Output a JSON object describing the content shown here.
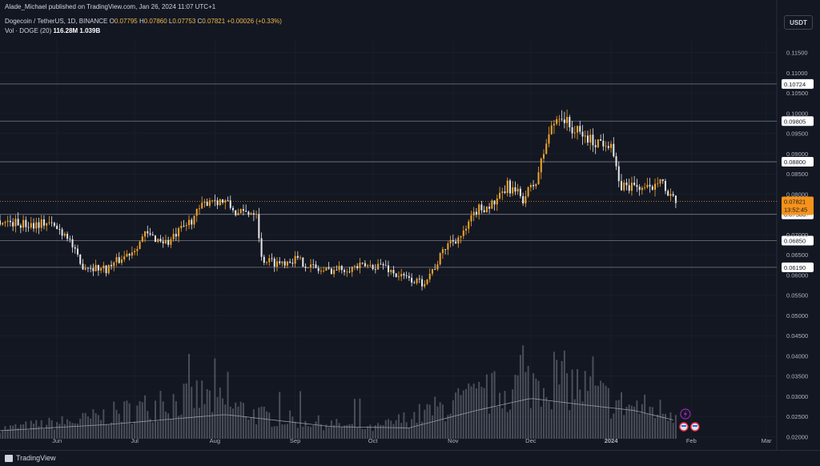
{
  "header": {
    "publisher": "Alade_Michael published on TradingView.com, Jan 26, 2024 11:07 UTC+1",
    "symbol": "Dogecoin / TetherUS, 1D, BINANCE",
    "ohlc": [
      {
        "k": "O",
        "v": "0.07795"
      },
      {
        "k": "H",
        "v": "0.07860"
      },
      {
        "k": "L",
        "v": "0.07753"
      },
      {
        "k": "C",
        "v": "0.07821"
      }
    ],
    "change": "+0.00026 (+0.33%)",
    "vol_label": "Vol · DOGE (20)",
    "vol_value": "116.28M",
    "vol_ma": "1.039B"
  },
  "currency": "USDT",
  "footer": {
    "brand": "TradingView"
  },
  "colors": {
    "background": "#131722",
    "up": "#f0a52c",
    "down": "#e8e8ea",
    "level_line": "#787b86",
    "price_line": "#f7931a",
    "volume": "#787b86",
    "volume_ma": "#9598a1"
  },
  "chart_data": {
    "type": "candlestick",
    "price_axis": {
      "ticks": [
        "0.11500",
        "0.11000",
        "0.10500",
        "0.10000",
        "0.09500",
        "0.09000",
        "0.08500",
        "0.08000",
        "0.07500",
        "0.07000",
        "0.06500",
        "0.06000",
        "0.05500",
        "0.05000",
        "0.04500",
        "0.04000",
        "0.03500",
        "0.03000",
        "0.02500",
        "0.02000"
      ],
      "range": [
        0.0195,
        0.1185
      ]
    },
    "time_axis": {
      "labels": [
        "Jun",
        "Jul",
        "Aug",
        "Sep",
        "Oct",
        "Nov",
        "Dec",
        "2024",
        "Feb",
        "Mar"
      ],
      "start": "2023-05-10",
      "end": "2024-03-05"
    },
    "horizontal_levels": [
      {
        "value": 0.10724,
        "label": "0.10724"
      },
      {
        "value": 0.09805,
        "label": "0.09805"
      },
      {
        "value": 0.088,
        "label": "0.08800"
      },
      {
        "value": 0.075,
        "label": "0.07500"
      },
      {
        "value": 0.0685,
        "label": "0.06850"
      },
      {
        "value": 0.0619,
        "label": "0.06190"
      }
    ],
    "last_price": {
      "value": 0.07821,
      "label": "0.07821",
      "countdown": "13:52:45"
    },
    "price_anchors": [
      [
        "2023-05-10",
        0.0735
      ],
      [
        "2023-05-20",
        0.0725
      ],
      [
        "2023-05-28",
        0.073
      ],
      [
        "2023-06-05",
        0.07
      ],
      [
        "2023-06-10",
        0.0625
      ],
      [
        "2023-06-20",
        0.0615
      ],
      [
        "2023-06-30",
        0.066
      ],
      [
        "2023-07-05",
        0.07
      ],
      [
        "2023-07-14",
        0.068
      ],
      [
        "2023-07-22",
        0.073
      ],
      [
        "2023-07-26",
        0.076
      ],
      [
        "2023-07-30",
        0.079
      ],
      [
        "2023-08-05",
        0.078
      ],
      [
        "2023-08-10",
        0.075
      ],
      [
        "2023-08-17",
        0.076
      ],
      [
        "2023-08-19",
        0.064
      ],
      [
        "2023-08-25",
        0.063
      ],
      [
        "2023-09-01",
        0.064
      ],
      [
        "2023-09-11",
        0.061
      ],
      [
        "2023-09-25",
        0.062
      ],
      [
        "2023-10-05",
        0.0625
      ],
      [
        "2023-10-10",
        0.06
      ],
      [
        "2023-10-20",
        0.058
      ],
      [
        "2023-10-25",
        0.062
      ],
      [
        "2023-10-30",
        0.068
      ],
      [
        "2023-11-05",
        0.07
      ],
      [
        "2023-11-10",
        0.076
      ],
      [
        "2023-11-18",
        0.078
      ],
      [
        "2023-11-22",
        0.082
      ],
      [
        "2023-11-28",
        0.079
      ],
      [
        "2023-12-03",
        0.083
      ],
      [
        "2023-12-08",
        0.095
      ],
      [
        "2023-12-12",
        0.1
      ],
      [
        "2023-12-17",
        0.096
      ],
      [
        "2023-12-25",
        0.093
      ],
      [
        "2024-01-01",
        0.093
      ],
      [
        "2024-01-04",
        0.082
      ],
      [
        "2024-01-10",
        0.082
      ],
      [
        "2024-01-16",
        0.081
      ],
      [
        "2024-01-20",
        0.085
      ],
      [
        "2024-01-23",
        0.079
      ],
      [
        "2024-01-26",
        0.0782
      ]
    ],
    "volume_anchors": [
      [
        "2023-05-10",
        0.022
      ],
      [
        "2023-06-10",
        0.024
      ],
      [
        "2023-07-26",
        0.03
      ],
      [
        "2023-08-20",
        0.025
      ],
      [
        "2023-10-01",
        0.022
      ],
      [
        "2023-11-01",
        0.028
      ],
      [
        "2023-12-10",
        0.035
      ],
      [
        "2024-01-04",
        0.028
      ],
      [
        "2024-01-26",
        0.026
      ]
    ],
    "volume_ma_anchors": [
      [
        "2023-05-10",
        0.0215
      ],
      [
        "2023-06-20",
        0.023
      ],
      [
        "2023-08-05",
        0.0255
      ],
      [
        "2023-09-15",
        0.0225
      ],
      [
        "2023-10-15",
        0.0222
      ],
      [
        "2023-11-10",
        0.0265
      ],
      [
        "2023-12-01",
        0.0295
      ],
      [
        "2023-12-20",
        0.028
      ],
      [
        "2024-01-10",
        0.0265
      ],
      [
        "2024-01-26",
        0.024
      ]
    ]
  }
}
